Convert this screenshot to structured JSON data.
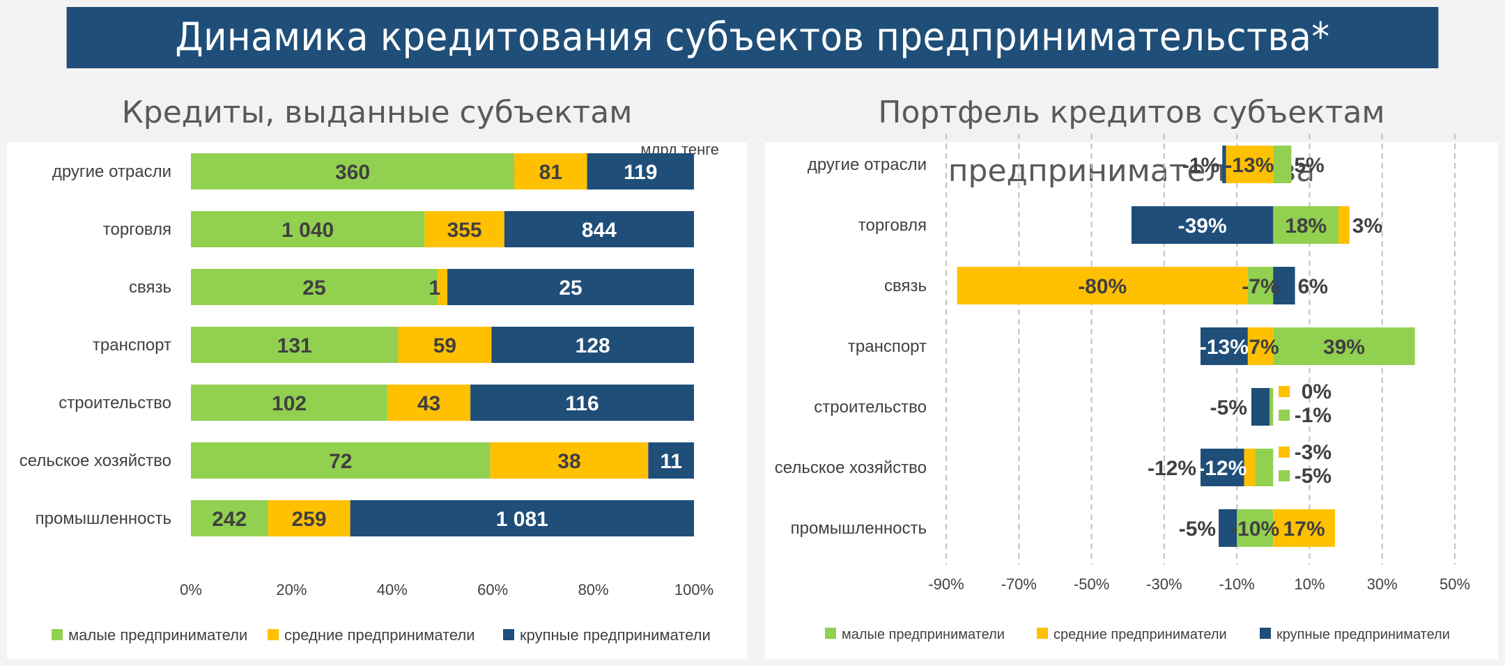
{
  "page_title": "Динамика кредитования субъектов предпринимательства*",
  "colors": {
    "small": "#92d050",
    "medium": "#ffc000",
    "large": "#1f4e79",
    "grid": "#bfbfbf"
  },
  "chart_data": [
    {
      "type": "bar",
      "stacked": "percent",
      "orientation": "horizontal",
      "title": "Кредиты, выданные субъектам предпринимательства",
      "unit": "млрд тенге",
      "categories": [
        "другие отрасли",
        "торговля",
        "связь",
        "транспорт",
        "строительство",
        "сельское хозяйство",
        "промышленность"
      ],
      "series": [
        {
          "name": "малые предприниматели",
          "values": [
            360,
            1040,
            25,
            131,
            102,
            72,
            242
          ],
          "labels": [
            "360",
            "1 040",
            "25",
            "131",
            "102",
            "72",
            "242"
          ]
        },
        {
          "name": "средние предприниматели",
          "values": [
            81,
            355,
            1,
            59,
            43,
            38,
            259
          ],
          "labels": [
            "81",
            "355",
            "1",
            "59",
            "43",
            "38",
            "259"
          ]
        },
        {
          "name": "крупные предприниматели",
          "values": [
            119,
            844,
            25,
            128,
            116,
            11,
            1081
          ],
          "labels": [
            "119",
            "844",
            "25",
            "128",
            "116",
            "11",
            "1 081"
          ]
        }
      ],
      "xticks": [
        "0%",
        "20%",
        "40%",
        "60%",
        "80%",
        "100%"
      ],
      "xlim": [
        0,
        100
      ],
      "legend": "bottom"
    },
    {
      "type": "bar",
      "stacked": "diverging",
      "orientation": "horizontal",
      "title": "Портфель кредитов субъектам предпринимательства",
      "categories": [
        "другие отрасли",
        "торговля",
        "связь",
        "транспорт",
        "строительство",
        "сельское хозяйство",
        "промышленность"
      ],
      "series": [
        {
          "name": "малые предприниматели",
          "values": [
            5,
            18,
            -7,
            39,
            -1,
            -5,
            -10
          ],
          "labels": [
            "5%",
            "18%",
            "-7%",
            "39%",
            "-1%",
            "-5%",
            "-10%"
          ]
        },
        {
          "name": "средние предприниматели",
          "values": [
            -13,
            3,
            -80,
            -7,
            0,
            -3,
            17
          ],
          "labels": [
            "-13%",
            "3%",
            "-80%",
            "-7%",
            "0%",
            "-3%",
            "17%"
          ]
        },
        {
          "name": "крупные предприниматели",
          "values": [
            -1,
            -39,
            6,
            -13,
            -5,
            -12,
            -5
          ],
          "labels": [
            "-1%",
            "-39%",
            "6%",
            "-13%",
            "-5%",
            "-12%",
            "-5%"
          ]
        }
      ],
      "xticks": [
        "-90%",
        "-70%",
        "-50%",
        "-30%",
        "-10%",
        "10%",
        "30%",
        "50%"
      ],
      "xlim": [
        -90,
        50
      ],
      "grid": "vertical dashed",
      "legend": "bottom"
    }
  ]
}
